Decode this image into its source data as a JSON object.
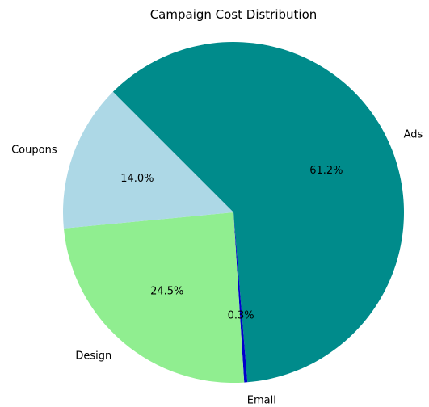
{
  "chart_data": {
    "type": "pie",
    "title": "Campaign Cost Distribution",
    "slices": [
      {
        "label": "Ads",
        "pct_label": "61.2%",
        "value": 61.2,
        "color": "#008b8b"
      },
      {
        "label": "Email",
        "pct_label": "0.3%",
        "value": 0.3,
        "color": "#0000cd"
      },
      {
        "label": "Design",
        "pct_label": "24.5%",
        "value": 24.5,
        "color": "#90ee90"
      },
      {
        "label": "Coupons",
        "pct_label": "14.0%",
        "value": 14.0,
        "color": "#add8e6"
      }
    ],
    "legend": "none"
  }
}
